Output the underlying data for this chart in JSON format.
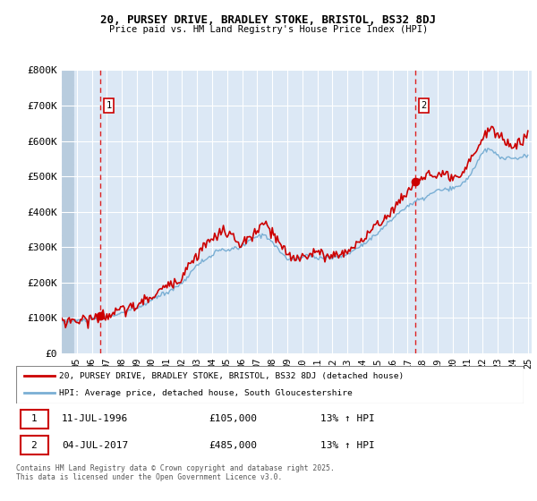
{
  "title": "20, PURSEY DRIVE, BRADLEY STOKE, BRISTOL, BS32 8DJ",
  "subtitle": "Price paid vs. HM Land Registry's House Price Index (HPI)",
  "plot_bg_color": "#dce8f5",
  "hatch_color": "#b8ccde",
  "red_line_color": "#cc0000",
  "blue_line_color": "#7aafd4",
  "marker_color": "#cc0000",
  "dashed_line_color": "#dd2222",
  "grid_color": "#ffffff",
  "ylim": [
    0,
    800000
  ],
  "yticks": [
    0,
    100000,
    200000,
    300000,
    400000,
    500000,
    600000,
    700000,
    800000
  ],
  "ytick_labels": [
    "£0",
    "£100K",
    "£200K",
    "£300K",
    "£400K",
    "£500K",
    "£600K",
    "£700K",
    "£800K"
  ],
  "year_start": 1994,
  "year_end": 2025.25,
  "sale1_year": 1996.53,
  "sale1_price": 105000,
  "sale2_year": 2017.5,
  "sale2_price": 485000,
  "legend_line1": "20, PURSEY DRIVE, BRADLEY STOKE, BRISTOL, BS32 8DJ (detached house)",
  "legend_line2": "HPI: Average price, detached house, South Gloucestershire",
  "table_row1": [
    "1",
    "11-JUL-1996",
    "£105,000",
    "13% ↑ HPI"
  ],
  "table_row2": [
    "2",
    "04-JUL-2017",
    "£485,000",
    "13% ↑ HPI"
  ],
  "footer": "Contains HM Land Registry data © Crown copyright and database right 2025.\nThis data is licensed under the Open Government Licence v3.0.",
  "xtick_years": [
    1995,
    1996,
    1997,
    1998,
    1999,
    2000,
    2001,
    2002,
    2003,
    2004,
    2005,
    2006,
    2007,
    2008,
    2009,
    2010,
    2011,
    2012,
    2013,
    2014,
    2015,
    2016,
    2017,
    2018,
    2019,
    2020,
    2021,
    2022,
    2023,
    2024,
    2025
  ]
}
